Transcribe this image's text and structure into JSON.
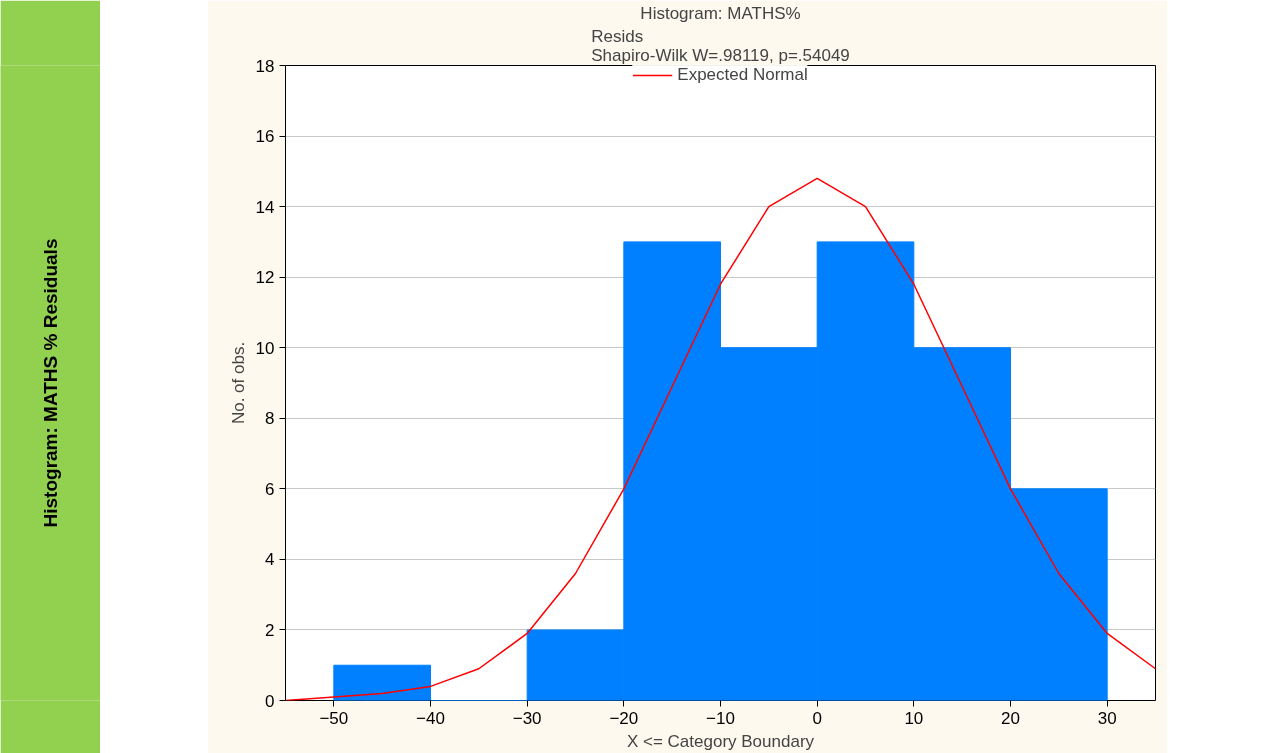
{
  "chart_data": {
    "type": "histogram",
    "title": "Histogram: MATHS%",
    "subtitle": "Resids\nShapiro-Wilk W=.98119, p=.54049",
    "xlabel": "X <= Category Boundary",
    "ylabel": "No. of obs.",
    "annotations": [
      "Histogram: MATHS % Residuals"
    ],
    "bins": [
      -50,
      -40,
      -30,
      -20,
      -10,
      0,
      10,
      20,
      30
    ],
    "values": [
      1,
      0,
      2,
      13,
      10,
      13,
      10,
      6
    ],
    "color": "#0080ff",
    "series": [
      {
        "name": "Expected Normal",
        "type": "line",
        "color": "#ff0000",
        "x": [
          -55,
          -50,
          -45,
          -40,
          -35,
          -30,
          -25,
          -20,
          -15,
          -10,
          -5,
          0,
          5,
          10,
          15,
          20,
          25,
          30,
          35
        ],
        "values": [
          0.0,
          0.1,
          0.2,
          0.4,
          0.9,
          1.9,
          3.6,
          6.0,
          8.9,
          11.8,
          14.0,
          14.8,
          14.0,
          11.8,
          8.9,
          6.0,
          3.6,
          1.9,
          0.9
        ]
      }
    ],
    "xlim": [
      -55,
      35
    ],
    "xticks": [
      -50,
      -40,
      -30,
      -20,
      -10,
      0,
      10,
      20,
      30
    ],
    "ylim": [
      0,
      18
    ],
    "yticks": [
      0,
      2,
      4,
      6,
      8,
      10,
      12,
      14,
      16,
      18
    ],
    "grid": "y",
    "legend": "top"
  }
}
